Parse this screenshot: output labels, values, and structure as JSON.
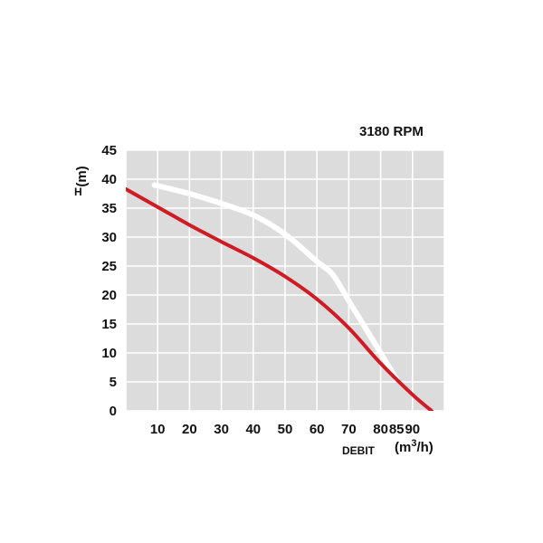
{
  "chart_data": {
    "type": "line",
    "title": "3180 RPM",
    "ylabel_letter": "H",
    "ylabel_unit": "(m)",
    "xlabel_word": "DEBIT",
    "xlabel_unit_prefix": "(m",
    "xlabel_unit_sup": "3",
    "xlabel_unit_suffix": "/h)",
    "xlim": [
      0,
      100
    ],
    "ylim": [
      0,
      45
    ],
    "x_ticks": [
      10,
      20,
      30,
      40,
      50,
      60,
      70,
      80,
      85,
      90
    ],
    "y_ticks": [
      0,
      5,
      10,
      15,
      20,
      25,
      30,
      35,
      40,
      45
    ],
    "grid": true,
    "colors": {
      "plot_background": "#dcdcdc",
      "grid": "#ffffff",
      "series_red": "#d01b25",
      "series_white": "#ffffff"
    },
    "series": [
      {
        "color": "red",
        "x": [
          0,
          10,
          20,
          30,
          40,
          50,
          60,
          70,
          80,
          90,
          96
        ],
        "y": [
          38.3,
          35.2,
          32.1,
          29.2,
          26.4,
          23.2,
          19.3,
          14.3,
          8.2,
          2.8,
          0
        ]
      },
      {
        "color": "white",
        "x": [
          9,
          15,
          20,
          30,
          40,
          50,
          60,
          65,
          70,
          75,
          80,
          85
        ],
        "y": [
          39,
          38.2,
          37.5,
          35.8,
          33.8,
          30.5,
          25.8,
          23.5,
          19.0,
          14.5,
          10.0,
          5.5
        ]
      }
    ]
  }
}
